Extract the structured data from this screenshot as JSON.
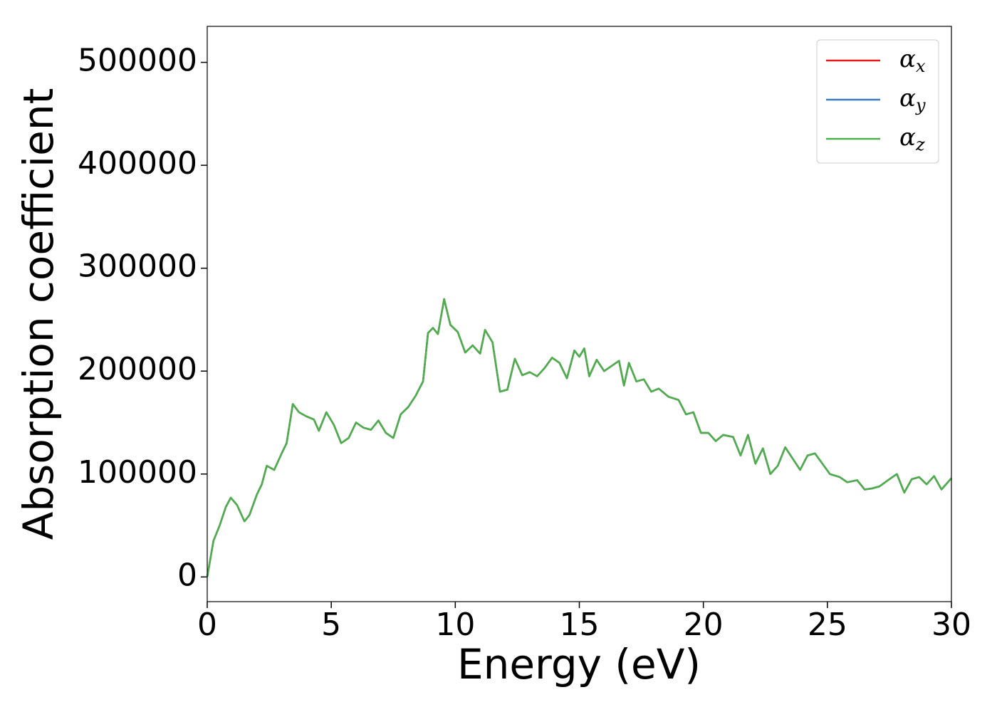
{
  "chart_data": {
    "type": "line",
    "xlabel": "Energy (eV)",
    "ylabel": "Absorption coefficient",
    "xlim": [
      0,
      30
    ],
    "xticks": [
      0,
      5,
      10,
      15,
      20,
      25,
      30
    ],
    "ylim": [
      -24000,
      535000
    ],
    "yticks": [
      0,
      100000,
      200000,
      300000,
      400000,
      500000
    ],
    "grid": false,
    "legend": "upper right",
    "x": [
      0,
      0.25,
      0.5,
      0.75,
      0.95,
      1.2,
      1.5,
      1.7,
      2.0,
      2.2,
      2.4,
      2.7,
      3.0,
      3.2,
      3.45,
      3.7,
      4.0,
      4.3,
      4.5,
      4.8,
      5.1,
      5.4,
      5.7,
      6.0,
      6.3,
      6.6,
      6.9,
      7.2,
      7.5,
      7.8,
      8.1,
      8.4,
      8.7,
      8.9,
      9.1,
      9.3,
      9.55,
      9.8,
      10.1,
      10.4,
      10.7,
      11.0,
      11.2,
      11.5,
      11.8,
      12.1,
      12.4,
      12.7,
      13.0,
      13.3,
      13.6,
      13.9,
      14.2,
      14.5,
      14.8,
      15.0,
      15.2,
      15.4,
      15.7,
      16.0,
      16.3,
      16.6,
      16.8,
      17.0,
      17.3,
      17.6,
      17.9,
      18.2,
      18.6,
      19.0,
      19.3,
      19.6,
      19.9,
      20.2,
      20.5,
      20.8,
      21.2,
      21.5,
      21.8,
      22.1,
      22.4,
      22.7,
      23.0,
      23.3,
      23.6,
      23.9,
      24.2,
      24.5,
      24.8,
      25.1,
      25.5,
      25.8,
      26.2,
      26.5,
      26.8,
      27.1,
      27.5,
      27.8,
      28.1,
      28.4,
      28.7,
      29.0,
      29.3,
      29.6,
      30.0
    ],
    "series": [
      {
        "name": "αx",
        "color": "#e41a1c",
        "values": [
          0,
          35000,
          50000,
          68000,
          77000,
          70000,
          54000,
          60000,
          80000,
          90000,
          108000,
          104000,
          120000,
          130000,
          168000,
          160000,
          156000,
          153000,
          142000,
          160000,
          148000,
          130000,
          135000,
          150000,
          145000,
          143000,
          152000,
          140000,
          135000,
          158000,
          165000,
          176000,
          190000,
          237000,
          242000,
          236000,
          270000,
          245000,
          238000,
          218000,
          225000,
          217000,
          240000,
          228000,
          180000,
          182000,
          212000,
          196000,
          199000,
          195000,
          203000,
          213000,
          208000,
          193000,
          220000,
          214000,
          222000,
          195000,
          211000,
          200000,
          205000,
          210000,
          186000,
          208000,
          190000,
          192000,
          180000,
          183000,
          175000,
          172000,
          158000,
          160000,
          140000,
          140000,
          132000,
          138000,
          136000,
          118000,
          138000,
          110000,
          125000,
          100000,
          108000,
          126000,
          115000,
          104000,
          118000,
          120000,
          110000,
          100000,
          97000,
          92000,
          94000,
          85000,
          86000,
          88000,
          95000,
          100000,
          82000,
          95000,
          97000,
          90000,
          98000,
          85000,
          96000
        ]
      },
      {
        "name": "αy",
        "color": "#377eb8",
        "values": [
          0,
          35000,
          50000,
          68000,
          77000,
          70000,
          54000,
          60000,
          80000,
          90000,
          108000,
          104000,
          120000,
          130000,
          168000,
          160000,
          156000,
          153000,
          142000,
          160000,
          148000,
          130000,
          135000,
          150000,
          145000,
          143000,
          152000,
          140000,
          135000,
          158000,
          165000,
          176000,
          190000,
          237000,
          242000,
          236000,
          270000,
          245000,
          238000,
          218000,
          225000,
          217000,
          240000,
          228000,
          180000,
          182000,
          212000,
          196000,
          199000,
          195000,
          203000,
          213000,
          208000,
          193000,
          220000,
          214000,
          222000,
          195000,
          211000,
          200000,
          205000,
          210000,
          186000,
          208000,
          190000,
          192000,
          180000,
          183000,
          175000,
          172000,
          158000,
          160000,
          140000,
          140000,
          132000,
          138000,
          136000,
          118000,
          138000,
          110000,
          125000,
          100000,
          108000,
          126000,
          115000,
          104000,
          118000,
          120000,
          110000,
          100000,
          97000,
          92000,
          94000,
          85000,
          86000,
          88000,
          95000,
          100000,
          82000,
          95000,
          97000,
          90000,
          98000,
          85000,
          96000
        ]
      },
      {
        "name": "αz",
        "color": "#4daf4a",
        "values": [
          0,
          35000,
          50000,
          68000,
          77000,
          70000,
          54000,
          60000,
          80000,
          90000,
          108000,
          104000,
          120000,
          130000,
          168000,
          160000,
          156000,
          153000,
          142000,
          160000,
          148000,
          130000,
          135000,
          150000,
          145000,
          143000,
          152000,
          140000,
          135000,
          158000,
          165000,
          176000,
          190000,
          237000,
          242000,
          236000,
          270000,
          245000,
          238000,
          218000,
          225000,
          217000,
          240000,
          228000,
          180000,
          182000,
          212000,
          196000,
          199000,
          195000,
          203000,
          213000,
          208000,
          193000,
          220000,
          214000,
          222000,
          195000,
          211000,
          200000,
          205000,
          210000,
          186000,
          208000,
          190000,
          192000,
          180000,
          183000,
          175000,
          172000,
          158000,
          160000,
          140000,
          140000,
          132000,
          138000,
          136000,
          118000,
          138000,
          110000,
          125000,
          100000,
          108000,
          126000,
          115000,
          104000,
          118000,
          120000,
          110000,
          100000,
          97000,
          92000,
          94000,
          85000,
          86000,
          88000,
          95000,
          100000,
          82000,
          95000,
          97000,
          90000,
          98000,
          85000,
          96000
        ]
      }
    ]
  }
}
